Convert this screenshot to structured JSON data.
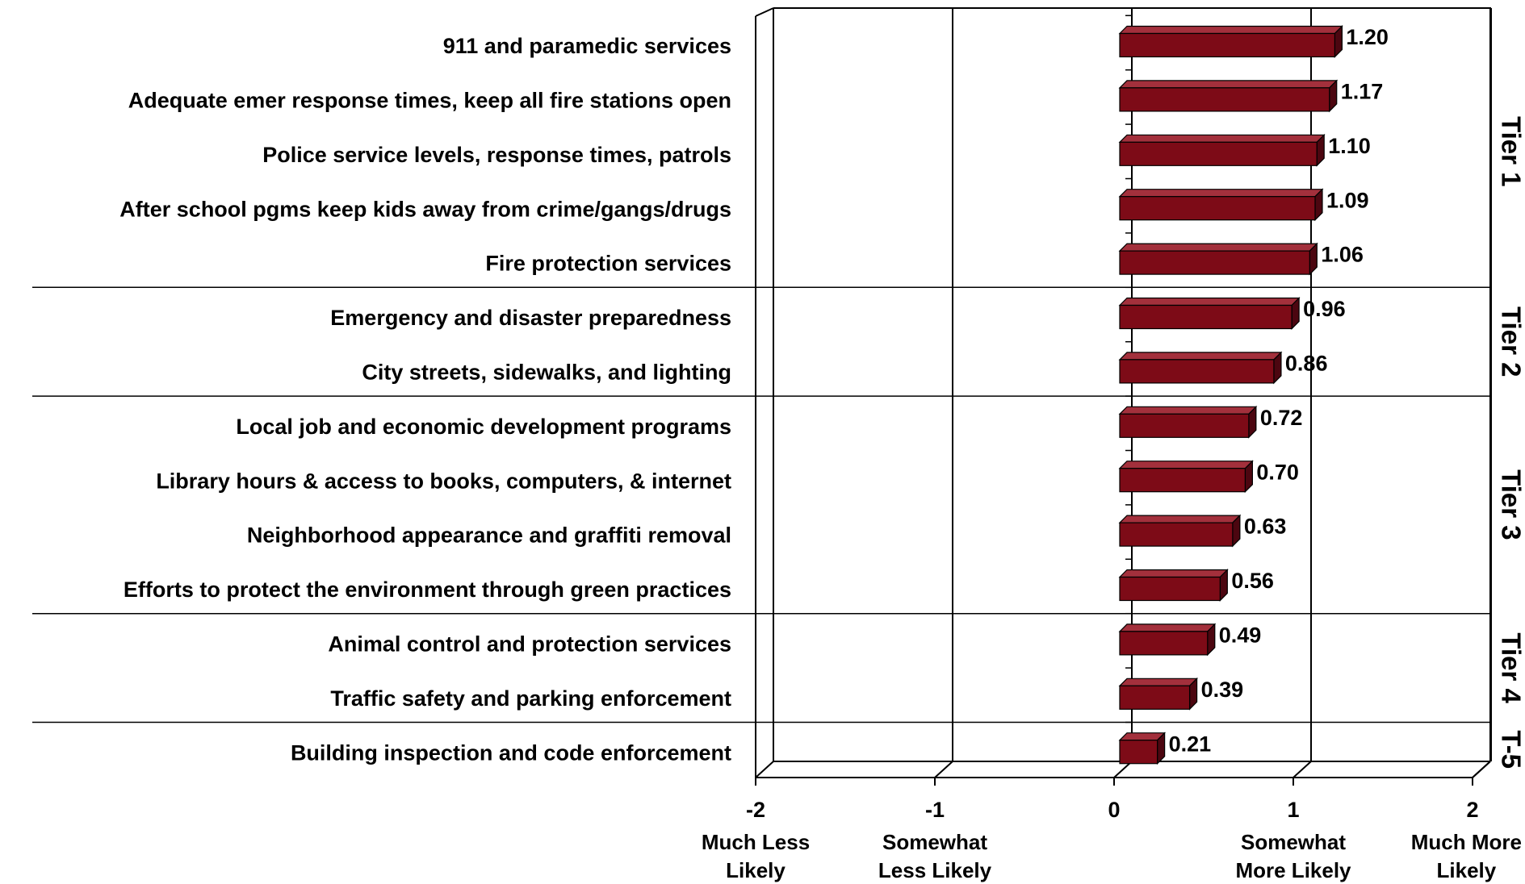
{
  "chart_data": {
    "type": "bar",
    "orientation": "horizontal",
    "categories": [
      "911 and paramedic services",
      "Adequate emer response times, keep all fire stations open",
      "Police service levels, response times, patrols",
      "After school pgms keep kids away from crime/gangs/drugs",
      "Fire protection services",
      "Emergency and disaster preparedness",
      "City streets, sidewalks, and lighting",
      "Local job and economic development programs",
      "Library hours & access to books, computers, & internet",
      "Neighborhood appearance and graffiti removal",
      "Efforts to protect the environment through green practices",
      "Animal control and protection services",
      "Traffic safety and parking enforcement",
      "Building inspection and code enforcement"
    ],
    "values": [
      1.2,
      1.17,
      1.1,
      1.09,
      1.06,
      0.96,
      0.86,
      0.72,
      0.7,
      0.63,
      0.56,
      0.49,
      0.39,
      0.21
    ],
    "value_labels": [
      "1.20",
      "1.17",
      "1.10",
      "1.09",
      "1.06",
      "0.96",
      "0.86",
      "0.72",
      "0.70",
      "0.63",
      "0.56",
      "0.49",
      "0.39",
      "0.21"
    ],
    "tiers": [
      "Tier 1",
      "Tier 1",
      "Tier 1",
      "Tier 1",
      "Tier 1",
      "Tier 2",
      "Tier 2",
      "Tier 3",
      "Tier 3",
      "Tier 3",
      "Tier 3",
      "Tier 4",
      "Tier 4",
      "T-5"
    ],
    "color": "#7d0b17",
    "xlim": [
      -2,
      2
    ],
    "xticks": [
      -2,
      -1,
      0,
      1,
      2
    ],
    "xtick_notes": [
      {
        "value": -2,
        "label": [
          "Much Less",
          "Likely"
        ]
      },
      {
        "value": -1,
        "label": [
          "Somewhat",
          "Less Likely"
        ]
      },
      {
        "value": 1,
        "label": [
          "Somewhat",
          "More Likely"
        ]
      },
      {
        "value": 2,
        "label": [
          "Much More",
          "Likely"
        ]
      }
    ],
    "grid": true
  }
}
